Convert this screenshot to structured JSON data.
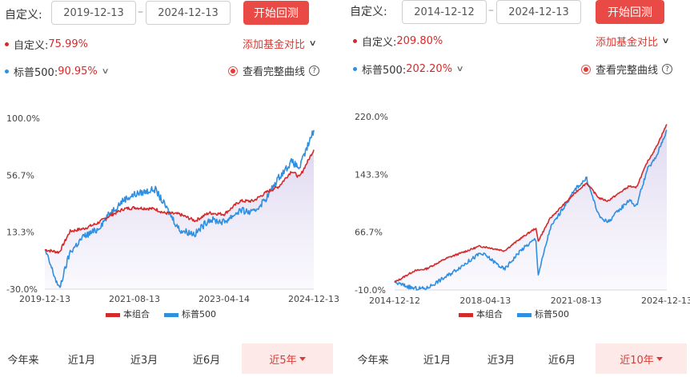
{
  "panels": [
    {
      "custom_label": "自定义:",
      "start_date": "2019-12-13",
      "dash": "–",
      "end_date": "2024-12-13",
      "start_button": "开始回测",
      "series1_label": "自定义:",
      "series1_value": "75.99%",
      "add_fund_compare": "添加基金对比",
      "series2_label": "标普500:",
      "series2_value": "90.95%",
      "view_full_curve": "查看完整曲线",
      "help": "?",
      "tabs": [
        "今年来",
        "近1月",
        "近3月",
        "近6月",
        "近5年"
      ],
      "active_tab": 4,
      "chart_data": {
        "type": "line",
        "x": [
          "2019-12-13",
          "2020-03-20",
          "2020-06-01",
          "2020-09-01",
          "2020-12-01",
          "2021-03-01",
          "2021-06-01",
          "2021-08-13",
          "2021-12-31",
          "2022-03-01",
          "2022-06-15",
          "2022-09-30",
          "2022-12-31",
          "2023-04-14",
          "2023-07-31",
          "2023-10-27",
          "2024-01-31",
          "2024-04-19",
          "2024-07-16",
          "2024-09-06",
          "2024-12-13"
        ],
        "series": [
          {
            "name": "本组合",
            "color": "#d42a2a",
            "values": [
              0,
              -2,
              14,
              16,
              20,
              26,
              31,
              32,
              31,
              28,
              27,
              22,
              28,
              27,
              37,
              37,
              44,
              48,
              60,
              55,
              75.99
            ]
          },
          {
            "name": "标普500",
            "color": "#2f8fe0",
            "values": [
              0,
              -30,
              -2,
              10,
              15,
              28,
              38,
              42,
              46,
              35,
              15,
              12,
              23,
              21,
              30,
              28,
              40,
              55,
              67,
              62,
              90.95
            ]
          }
        ],
        "y_ticks": [
          "100.0%",
          "56.7%",
          "13.3%",
          "-30.0%"
        ],
        "ylim": [
          -30,
          100
        ],
        "x_ticks": [
          "2019-12-13",
          "2021-08-13",
          "2023-04-14",
          "2024-12-13"
        ],
        "legend": [
          "本组合",
          "标普500"
        ],
        "legend_position": "bottom"
      }
    },
    {
      "custom_label": "自定义:",
      "start_date": "2014-12-12",
      "dash": "–",
      "end_date": "2024-12-13",
      "start_button": "开始回测",
      "series1_label": "自定义:",
      "series1_value": "209.80%",
      "add_fund_compare": "添加基金对比",
      "series2_label": "标普500:",
      "series2_value": "202.20%",
      "view_full_curve": "查看完整曲线",
      "help": "?",
      "tabs": [
        "今年来",
        "近1月",
        "近3月",
        "近6月",
        "近10年"
      ],
      "active_tab": 4,
      "chart_data": {
        "type": "line",
        "x": [
          "2014-12-12",
          "2015-08-25",
          "2016-02-11",
          "2016-11-08",
          "2018-01-26",
          "2018-04-13",
          "2018-12-24",
          "2019-07-26",
          "2020-02-19",
          "2020-03-23",
          "2020-08-31",
          "2021-08-13",
          "2021-12-31",
          "2022-06-16",
          "2022-10-12",
          "2023-07-31",
          "2023-10-27",
          "2024-03-28",
          "2024-07-16",
          "2024-12-13"
        ],
        "series": [
          {
            "name": "本组合",
            "color": "#d42a2a",
            "values": [
              0,
              15,
              18,
              32,
              48,
              47,
              42,
              58,
              72,
              55,
              85,
              120,
              132,
              112,
              108,
              128,
              125,
              160,
              178,
              209.8
            ]
          },
          {
            "name": "标普500",
            "color": "#2f8fe0",
            "values": [
              0,
              -8,
              -8,
              8,
              38,
              36,
              17,
              42,
              58,
              10,
              72,
              125,
              138,
              88,
              80,
              110,
              100,
              150,
              165,
              202.2
            ]
          }
        ],
        "y_ticks": [
          "220.0%",
          "143.3%",
          "66.7%",
          "-10.0%"
        ],
        "ylim": [
          -10,
          220
        ],
        "x_ticks": [
          "2014-12-12",
          "2018-04-13",
          "2021-08-13",
          "2024-12-13"
        ],
        "legend": [
          "本组合",
          "标普500"
        ],
        "legend_position": "bottom"
      }
    }
  ]
}
